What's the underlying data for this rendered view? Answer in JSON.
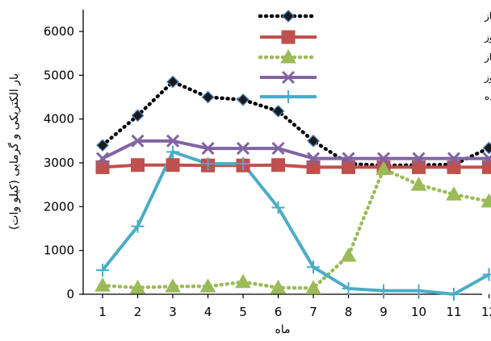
{
  "chart_data": {
    "type": "line",
    "xlabel": "ماه",
    "ylabel": "بار الکتریکی و گرمایی (کیلو وات)",
    "x": [
      1,
      2,
      3,
      4,
      5,
      6,
      7,
      8,
      9,
      10,
      11,
      12
    ],
    "ylim": [
      0,
      6500
    ],
    "yticks": [
      0,
      1000,
      2000,
      3000,
      4000,
      5000,
      6000
    ],
    "grid": false,
    "legend_position": "top-right",
    "series": [
      {
        "name": "الکتریسیته موردنیاز",
        "color": "#000000",
        "marker_color": "#1a1a1a",
        "marker_edge": "#4f81bd",
        "style": "dotted",
        "marker": "diamond",
        "values": [
          3400,
          4080,
          4850,
          4500,
          4440,
          4180,
          3500,
          2980,
          2940,
          2950,
          2960,
          3340
        ]
      },
      {
        "name": "الکتریسیته دریافتی از موتور گازسوز",
        "color": "#c0504d",
        "style": "solid",
        "marker": "square",
        "values": [
          2900,
          2950,
          2950,
          2940,
          2940,
          2950,
          2900,
          2900,
          2900,
          2900,
          2900,
          2900
        ]
      },
      {
        "name": "گرمایش موردنیاز",
        "color": "#9bbb59",
        "style": "dotted",
        "marker": "triangle",
        "values": [
          200,
          150,
          180,
          180,
          280,
          150,
          140,
          880,
          2860,
          2500,
          2280,
          2120
        ]
      },
      {
        "name": "گرمایش دریافتی از موتورگازسوز",
        "color": "#8064a2",
        "style": "solid",
        "marker": "x",
        "values": [
          3100,
          3500,
          3500,
          3330,
          3330,
          3330,
          3100,
          3100,
          3100,
          3100,
          3100,
          3100
        ]
      },
      {
        "name": "الکتریسیته خریداری شده",
        "color": "#4bacc6",
        "style": "solid",
        "marker": "plus",
        "values": [
          550,
          1550,
          3250,
          2980,
          2980,
          1980,
          620,
          130,
          80,
          80,
          0,
          450
        ]
      }
    ]
  }
}
